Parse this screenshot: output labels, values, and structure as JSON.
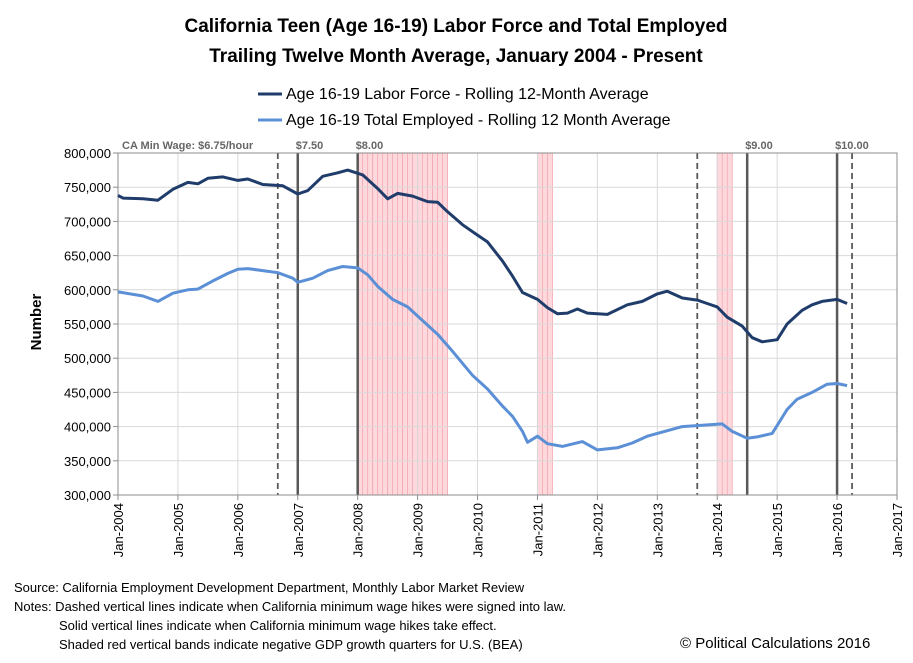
{
  "chart_data": {
    "type": "line",
    "title": "California Teen (Age 16-19) Labor Force and Total Employed",
    "subtitle": "Trailing Twelve Month Average, January 2004  - Present",
    "ylabel": "Number",
    "xlabel": "",
    "ylim": [
      300000,
      800000
    ],
    "xlim": [
      "2004-01",
      "2017-01"
    ],
    "y_ticks": [
      "300,000",
      "350,000",
      "400,000",
      "450,000",
      "500,000",
      "550,000",
      "600,000",
      "650,000",
      "700,000",
      "750,000",
      "800,000"
    ],
    "x_ticks": [
      "Jan-2004",
      "Jan-2005",
      "Jan-2006",
      "Jan-2007",
      "Jan-2008",
      "Jan-2009",
      "Jan-2010",
      "Jan-2011",
      "Jan-2012",
      "Jan-2013",
      "Jan-2014",
      "Jan-2015",
      "Jan-2016",
      "Jan-2017"
    ],
    "grid": true,
    "legend_position": "top-center",
    "series": [
      {
        "name": "Age 16-19 Labor Force - Rolling 12-Month Average",
        "color": "#1f3c6b",
        "points": [
          [
            "2004-01",
            738000
          ],
          [
            "2004-02",
            734000
          ],
          [
            "2004-06",
            733000
          ],
          [
            "2004-09",
            731000
          ],
          [
            "2004-12",
            747000
          ],
          [
            "2005-03",
            757000
          ],
          [
            "2005-05",
            755000
          ],
          [
            "2005-07",
            763000
          ],
          [
            "2005-10",
            765000
          ],
          [
            "2006-01",
            760000
          ],
          [
            "2006-03",
            762000
          ],
          [
            "2006-06",
            754000
          ],
          [
            "2006-10",
            752000
          ],
          [
            "2007-01",
            740000
          ],
          [
            "2007-03",
            745000
          ],
          [
            "2007-06",
            766000
          ],
          [
            "2007-09",
            771000
          ],
          [
            "2007-11",
            775000
          ],
          [
            "2008-02",
            768000
          ],
          [
            "2008-05",
            748000
          ],
          [
            "2008-07",
            733000
          ],
          [
            "2008-09",
            741000
          ],
          [
            "2008-12",
            737000
          ],
          [
            "2009-03",
            729000
          ],
          [
            "2009-05",
            728000
          ],
          [
            "2009-07",
            714000
          ],
          [
            "2009-10",
            695000
          ],
          [
            "2010-01",
            680000
          ],
          [
            "2010-03",
            670000
          ],
          [
            "2010-06",
            642000
          ],
          [
            "2010-08",
            620000
          ],
          [
            "2010-10",
            596000
          ],
          [
            "2011-01",
            586000
          ],
          [
            "2011-03",
            574000
          ],
          [
            "2011-05",
            565000
          ],
          [
            "2011-07",
            566000
          ],
          [
            "2011-09",
            572000
          ],
          [
            "2011-11",
            566000
          ],
          [
            "2012-03",
            564000
          ],
          [
            "2012-07",
            578000
          ],
          [
            "2012-10",
            583000
          ],
          [
            "2013-01",
            594000
          ],
          [
            "2013-03",
            598000
          ],
          [
            "2013-06",
            588000
          ],
          [
            "2013-09",
            585000
          ],
          [
            "2013-11",
            580000
          ],
          [
            "2014-01",
            575000
          ],
          [
            "2014-03",
            560000
          ],
          [
            "2014-06",
            547000
          ],
          [
            "2014-08",
            530000
          ],
          [
            "2014-10",
            524000
          ],
          [
            "2015-01",
            527000
          ],
          [
            "2015-03",
            550000
          ],
          [
            "2015-06",
            570000
          ],
          [
            "2015-08",
            578000
          ],
          [
            "2015-10",
            583000
          ],
          [
            "2016-01",
            586000
          ],
          [
            "2016-03",
            580000
          ]
        ]
      },
      {
        "name": "Age 16-19 Total Employed - Rolling 12 Month Average",
        "color": "#5b8fd6",
        "points": [
          [
            "2004-01",
            597000
          ],
          [
            "2004-06",
            591000
          ],
          [
            "2004-09",
            583000
          ],
          [
            "2004-12",
            595000
          ],
          [
            "2005-03",
            600000
          ],
          [
            "2005-05",
            601000
          ],
          [
            "2005-08",
            613000
          ],
          [
            "2005-11",
            624000
          ],
          [
            "2006-01",
            630000
          ],
          [
            "2006-03",
            631000
          ],
          [
            "2006-06",
            628000
          ],
          [
            "2006-09",
            625000
          ],
          [
            "2006-12",
            617000
          ],
          [
            "2007-01",
            611000
          ],
          [
            "2007-04",
            617000
          ],
          [
            "2007-07",
            628000
          ],
          [
            "2007-10",
            634000
          ],
          [
            "2008-01",
            632000
          ],
          [
            "2008-03",
            622000
          ],
          [
            "2008-05",
            605000
          ],
          [
            "2008-08",
            586000
          ],
          [
            "2008-11",
            575000
          ],
          [
            "2009-02",
            555000
          ],
          [
            "2009-05",
            535000
          ],
          [
            "2009-08",
            510000
          ],
          [
            "2009-12",
            475000
          ],
          [
            "2010-03",
            455000
          ],
          [
            "2010-06",
            430000
          ],
          [
            "2010-08",
            415000
          ],
          [
            "2010-10",
            393000
          ],
          [
            "2010-11",
            377000
          ],
          [
            "2011-01",
            386000
          ],
          [
            "2011-03",
            375000
          ],
          [
            "2011-06",
            371000
          ],
          [
            "2011-10",
            378000
          ],
          [
            "2012-01",
            366000
          ],
          [
            "2012-05",
            369000
          ],
          [
            "2012-08",
            376000
          ],
          [
            "2012-11",
            386000
          ],
          [
            "2013-02",
            392000
          ],
          [
            "2013-06",
            400000
          ],
          [
            "2013-10",
            402000
          ],
          [
            "2014-02",
            404000
          ],
          [
            "2014-04",
            393000
          ],
          [
            "2014-07",
            383000
          ],
          [
            "2014-09",
            385000
          ],
          [
            "2014-12",
            390000
          ],
          [
            "2015-03",
            425000
          ],
          [
            "2015-05",
            440000
          ],
          [
            "2015-08",
            450000
          ],
          [
            "2015-11",
            462000
          ],
          [
            "2016-01",
            463000
          ],
          [
            "2016-03",
            460000
          ]
        ]
      }
    ],
    "recession_bands": [
      [
        "2008-01",
        "2008-03"
      ],
      [
        "2008-04",
        "2008-06"
      ],
      [
        "2008-07",
        "2008-09"
      ],
      [
        "2008-10",
        "2008-12"
      ],
      [
        "2009-01",
        "2009-03"
      ],
      [
        "2009-04",
        "2009-06"
      ],
      [
        "2011-01",
        "2011-03"
      ],
      [
        "2014-01",
        "2014-03"
      ]
    ],
    "min_wage_lines": [
      {
        "date": "2006-09",
        "style": "dashed",
        "label": "CA Min Wage: $6.75/hour"
      },
      {
        "date": "2007-01",
        "style": "solid",
        "label": "$7.50"
      },
      {
        "date": "2008-01",
        "style": "solid",
        "label": "$8.00"
      },
      {
        "date": "2013-09",
        "style": "dashed",
        "label": ""
      },
      {
        "date": "2014-07",
        "style": "solid",
        "label": "$9.00"
      },
      {
        "date": "2016-01",
        "style": "solid",
        "label": "$10.00"
      },
      {
        "date": "2016-04",
        "style": "dashed",
        "label": ""
      }
    ]
  },
  "footer": {
    "source": "Source: California Employment Development Department, Monthly Labor Market Review",
    "note1": "Notes: Dashed vertical lines indicate when California minimum wage hikes were signed into law.",
    "note2": "Solid vertical lines indicate when California minimum wage hikes take effect.",
    "note3": "Shaded red vertical bands indicate negative GDP growth quarters for U.S. (BEA)",
    "copyright": "© Political Calculations 2016"
  }
}
